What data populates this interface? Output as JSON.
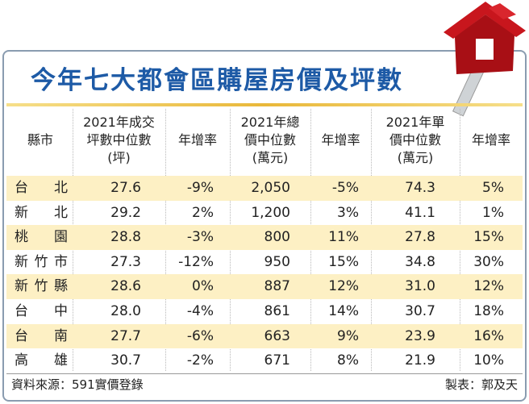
{
  "title": "今年七大都會區購屋房價及坪數",
  "table": {
    "header": [
      [
        "縣市"
      ],
      [
        "2021年成交",
        "坪數中位數",
        "(坪)"
      ],
      [
        "年增率"
      ],
      [
        "2021年總",
        "價中位數",
        "(萬元)"
      ],
      [
        "年增率"
      ],
      [
        "2021年單",
        "價中位數",
        "(萬元)"
      ],
      [
        "年增率"
      ]
    ],
    "rows": [
      [
        "台北",
        "27.6",
        "-9%",
        "2,050",
        "-5%",
        "74.3",
        "5%"
      ],
      [
        "新北",
        "29.2",
        "2%",
        "1,200",
        "3%",
        "41.1",
        "1%"
      ],
      [
        "桃園",
        "28.8",
        "-3%",
        "800",
        "11%",
        "27.8",
        "15%"
      ],
      [
        "新竹市",
        "27.3",
        "-12%",
        "950",
        "15%",
        "34.8",
        "30%"
      ],
      [
        "新竹縣",
        "28.6",
        "0%",
        "887",
        "12%",
        "31.0",
        "12%"
      ],
      [
        "台中",
        "28.0",
        "-4%",
        "861",
        "14%",
        "30.7",
        "18%"
      ],
      [
        "台南",
        "27.7",
        "-6%",
        "663",
        "9%",
        "23.9",
        "16%"
      ],
      [
        "高雄",
        "30.7",
        "-2%",
        "671",
        "8%",
        "21.9",
        "10%"
      ]
    ]
  },
  "footer": {
    "source": "資料來源：591實價登錄",
    "credit": "製表：郭及天"
  }
}
